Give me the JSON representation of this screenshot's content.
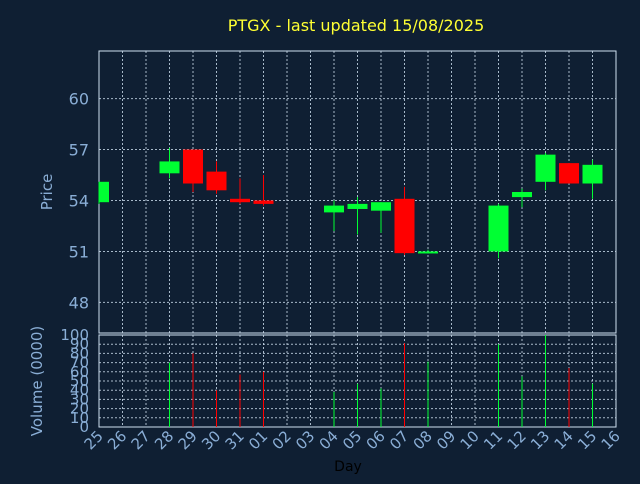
{
  "chart_data": [
    {
      "type": "candlestick",
      "title": "PTGX - last updated 15/08/2025",
      "xlabel": "",
      "ylabel": "Price",
      "ylim": [
        46.2,
        62.8
      ],
      "yticks": [
        48,
        51,
        54,
        57,
        60
      ],
      "grid": true,
      "colors": {
        "up": "#00ff33",
        "down": "#ff0000",
        "title": "#ffff33",
        "axis_text": "#8aaed6",
        "grid": "#cfe0f0",
        "background": "#0f1f33"
      },
      "categories": [
        "25",
        "26",
        "27",
        "28",
        "29",
        "30",
        "31",
        "01",
        "02",
        "03",
        "04",
        "05",
        "06",
        "07",
        "08",
        "09",
        "10",
        "11",
        "12",
        "13",
        "14",
        "15",
        "16"
      ],
      "candles": [
        {
          "x": "25",
          "open": 53.9,
          "high": 55.1,
          "low": 53.8,
          "close": 55.1
        },
        {
          "x": "28",
          "open": 55.6,
          "high": 57.1,
          "low": 55.3,
          "close": 56.3
        },
        {
          "x": "29",
          "open": 57.0,
          "high": 57.0,
          "low": 54.5,
          "close": 55.0
        },
        {
          "x": "30",
          "open": 55.7,
          "high": 56.3,
          "low": 54.4,
          "close": 54.6
        },
        {
          "x": "31",
          "open": 54.1,
          "high": 55.3,
          "low": 53.8,
          "close": 53.9
        },
        {
          "x": "01",
          "open": 54.0,
          "high": 55.5,
          "low": 53.7,
          "close": 53.8
        },
        {
          "x": "04",
          "open": 53.3,
          "high": 54.0,
          "low": 52.2,
          "close": 53.7
        },
        {
          "x": "05",
          "open": 53.5,
          "high": 54.2,
          "low": 52.0,
          "close": 53.8
        },
        {
          "x": "06",
          "open": 53.4,
          "high": 53.9,
          "low": 52.1,
          "close": 53.9
        },
        {
          "x": "07",
          "open": 54.1,
          "high": 54.8,
          "low": 50.8,
          "close": 50.9
        },
        {
          "x": "08",
          "open": 51.0,
          "high": 51.1,
          "low": 50.9,
          "close": 51.0
        },
        {
          "x": "11",
          "open": 51.0,
          "high": 53.8,
          "low": 50.6,
          "close": 53.7
        },
        {
          "x": "12",
          "open": 54.2,
          "high": 54.7,
          "low": 53.6,
          "close": 54.5
        },
        {
          "x": "13",
          "open": 55.1,
          "high": 56.8,
          "low": 54.6,
          "close": 56.7
        },
        {
          "x": "14",
          "open": 56.2,
          "high": 56.2,
          "low": 55.0,
          "close": 55.0
        },
        {
          "x": "15",
          "open": 55.0,
          "high": 56.4,
          "low": 54.1,
          "close": 56.1
        }
      ]
    },
    {
      "type": "bar",
      "title": "",
      "xlabel": "Day",
      "ylabel": "Volume (0000)",
      "ylim": [
        0,
        100
      ],
      "yticks": [
        0,
        10,
        20,
        30,
        40,
        50,
        60,
        70,
        80,
        90,
        100
      ],
      "grid": true,
      "categories": [
        "25",
        "26",
        "27",
        "28",
        "29",
        "30",
        "31",
        "01",
        "02",
        "03",
        "04",
        "05",
        "06",
        "07",
        "08",
        "09",
        "10",
        "11",
        "12",
        "13",
        "14",
        "15",
        "16"
      ],
      "bars": [
        {
          "x": "28",
          "value": 70,
          "direction": "up"
        },
        {
          "x": "29",
          "value": 80,
          "direction": "down"
        },
        {
          "x": "30",
          "value": 40,
          "direction": "down"
        },
        {
          "x": "31",
          "value": 57,
          "direction": "down"
        },
        {
          "x": "01",
          "value": 60,
          "direction": "down"
        },
        {
          "x": "04",
          "value": 38,
          "direction": "up"
        },
        {
          "x": "05",
          "value": 47,
          "direction": "up"
        },
        {
          "x": "06",
          "value": 42,
          "direction": "up"
        },
        {
          "x": "07",
          "value": 91,
          "direction": "down"
        },
        {
          "x": "08",
          "value": 71,
          "direction": "up"
        },
        {
          "x": "11",
          "value": 90,
          "direction": "up"
        },
        {
          "x": "12",
          "value": 55,
          "direction": "up"
        },
        {
          "x": "13",
          "value": 100,
          "direction": "up"
        },
        {
          "x": "14",
          "value": 64,
          "direction": "down"
        },
        {
          "x": "15",
          "value": 47,
          "direction": "up"
        }
      ]
    }
  ]
}
